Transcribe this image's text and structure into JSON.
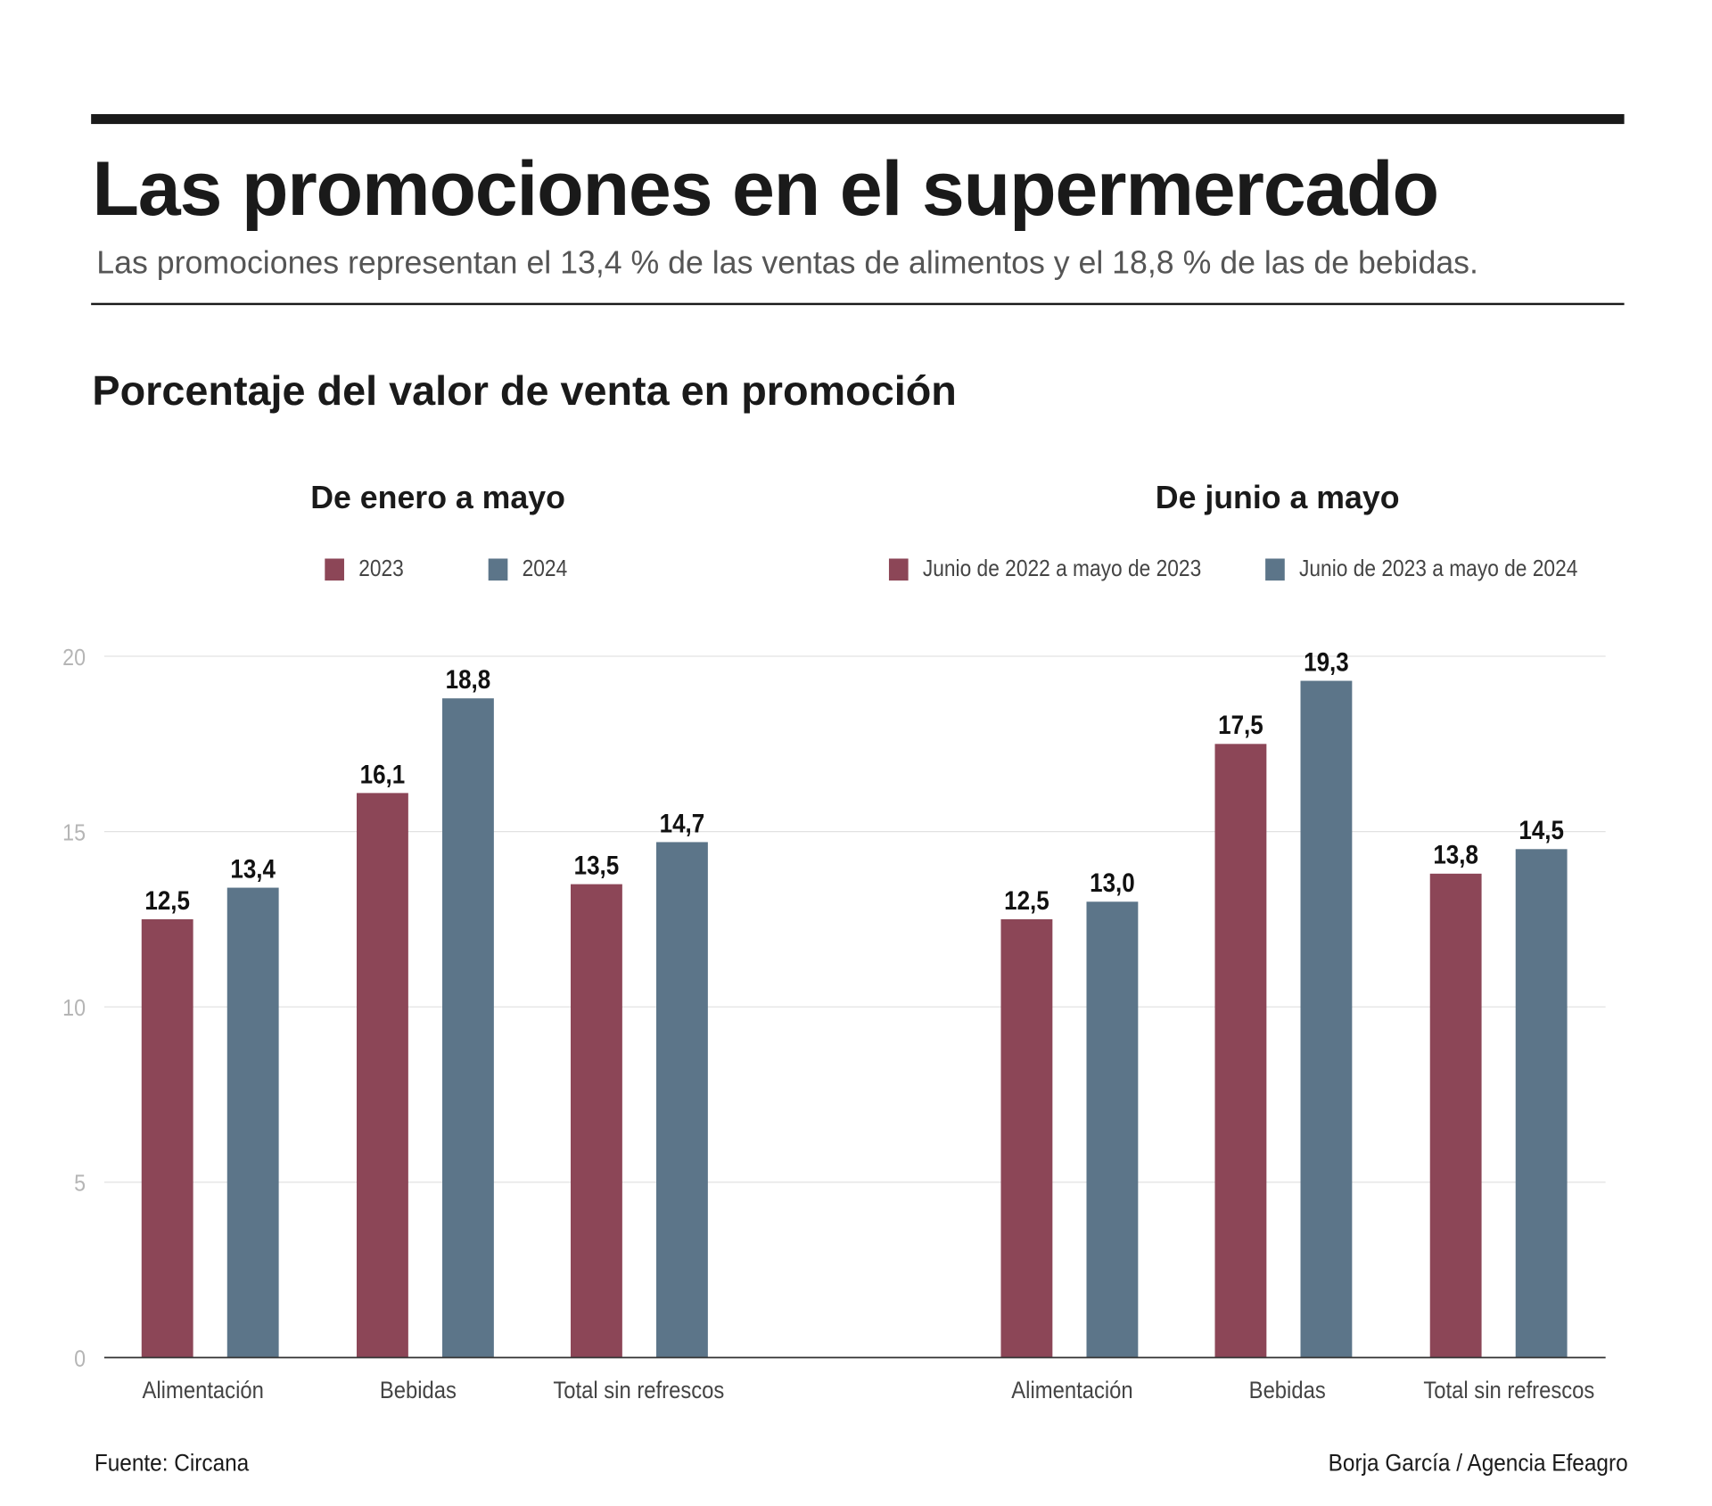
{
  "header": {
    "title": "Las promociones en el supermercado",
    "subtitle": "Las promociones representan el 13,4 % de las ventas de alimentos y el 18,8 % de las de bebidas.",
    "chart_heading": "Porcentaje del valor de venta en promoción"
  },
  "colors": {
    "series_a": "#8c4657",
    "series_b": "#5c7589"
  },
  "chart_data": [
    {
      "type": "bar",
      "title": "De enero a mayo",
      "categories": [
        "Alimentación",
        "Bebidas",
        "Total sin refrescos"
      ],
      "series": [
        {
          "name": "2023",
          "values": [
            12.5,
            16.1,
            13.5
          ],
          "labels": [
            "12,5",
            "16,1",
            "13,5"
          ]
        },
        {
          "name": "2024",
          "values": [
            13.4,
            18.8,
            14.7
          ],
          "labels": [
            "13,4",
            "18,8",
            "14,7"
          ]
        }
      ],
      "ylim": [
        0,
        20
      ],
      "yticks": [
        "0",
        "5",
        "10",
        "15",
        "20"
      ],
      "grid": true,
      "legend": "top"
    },
    {
      "type": "bar",
      "title": "De junio a mayo",
      "categories": [
        "Alimentación",
        "Bebidas",
        "Total sin refrescos"
      ],
      "series": [
        {
          "name": "Junio de 2022 a mayo de 2023",
          "values": [
            12.5,
            17.5,
            13.8
          ],
          "labels": [
            "12,5",
            "17,5",
            "13,8"
          ]
        },
        {
          "name": "Junio de 2023 a mayo de 2024",
          "values": [
            13.0,
            19.3,
            14.5
          ],
          "labels": [
            "13,0",
            "19,3",
            "14,5"
          ]
        }
      ],
      "ylim": [
        0,
        20
      ],
      "grid": true,
      "legend": "top"
    }
  ],
  "footer": {
    "source": "Fuente: Circana",
    "credit": "Borja García / Agencia Efeagro"
  }
}
